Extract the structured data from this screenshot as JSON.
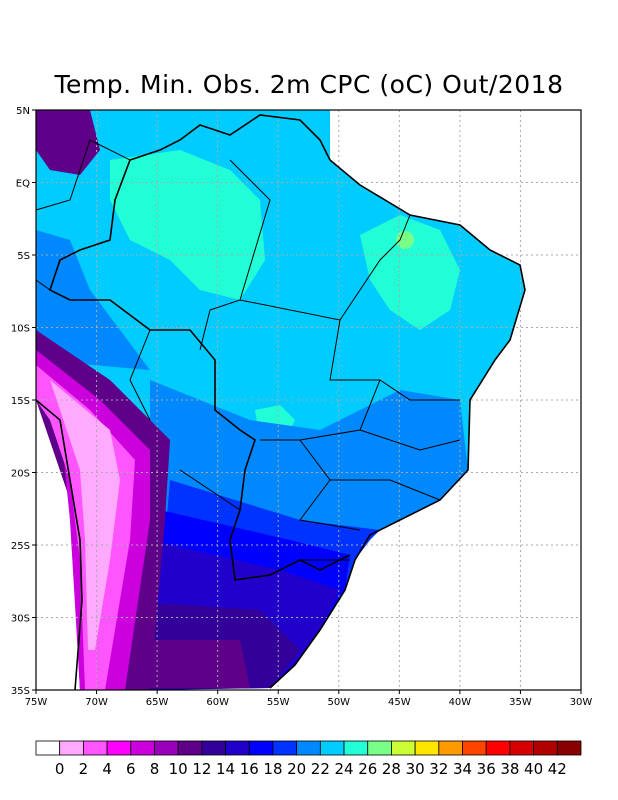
{
  "title": "Temp. Min. Obs. 2m CPC (oC) Out/2018",
  "lat_labels": [
    "5N",
    "EQ",
    "5S",
    "10S",
    "15S",
    "20S",
    "25S",
    "30S",
    "35S"
  ],
  "lon_labels": [
    "75W",
    "70W",
    "65W",
    "60W",
    "55W",
    "50W",
    "45W",
    "40W",
    "35W",
    "30W"
  ],
  "map_extent": {
    "lon": [
      -75,
      -30
    ],
    "lat": [
      -35,
      5
    ]
  },
  "colorbar": {
    "labels": [
      "0",
      "2",
      "4",
      "6",
      "8",
      "10",
      "12",
      "14",
      "16",
      "18",
      "20",
      "22",
      "24",
      "26",
      "28",
      "30",
      "32",
      "34",
      "36",
      "38",
      "40",
      "42"
    ],
    "colors": [
      "#ffffff",
      "#ffaaff",
      "#ff55ff",
      "#ff00ff",
      "#cc00dd",
      "#9900bb",
      "#5f0088",
      "#330099",
      "#2200cc",
      "#0000ff",
      "#0033ff",
      "#0088ff",
      "#00ccff",
      "#22ffd6",
      "#77ff88",
      "#ccff33",
      "#ffe600",
      "#ff9900",
      "#ff4400",
      "#ff0000",
      "#d60000",
      "#b00000",
      "#880000"
    ]
  }
}
